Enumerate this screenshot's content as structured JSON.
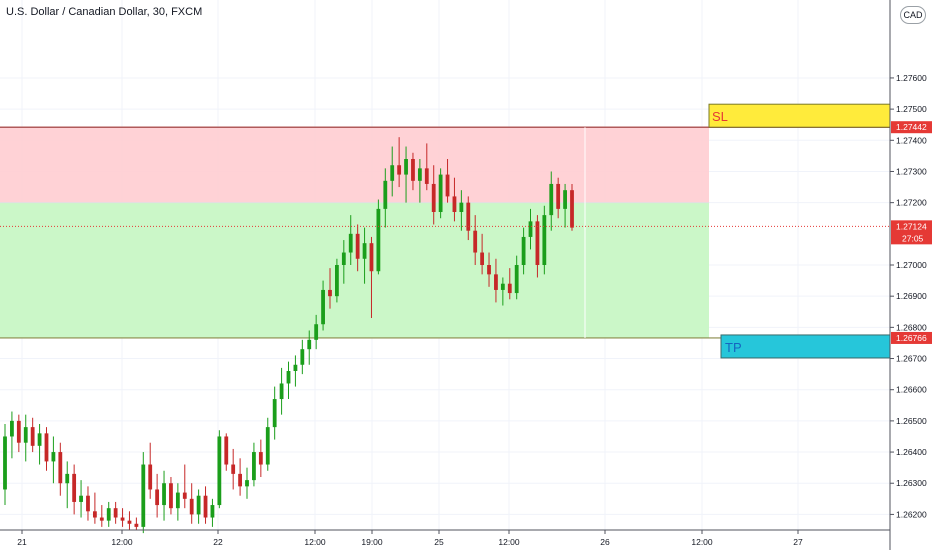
{
  "chart_data": {
    "type": "candlestick",
    "title": "U.S. Dollar / Canadian Dollar, 30, FXCM",
    "currency_badge": "CAD",
    "ylim": [
      1.2615,
      1.2785
    ],
    "y_ticks": [
      "1.27600",
      "1.27500",
      "1.27400",
      "1.27300",
      "1.27200",
      "1.27000",
      "1.26900",
      "1.26800",
      "1.26700",
      "1.26600",
      "1.26500",
      "1.26400",
      "1.26300",
      "1.26200"
    ],
    "x_ticks": [
      "21",
      "12:00",
      "22",
      "12:00",
      "19:00",
      "25",
      "12:00",
      "26",
      "12:00",
      "27"
    ],
    "positions": {
      "stop_loss": {
        "label": "SL",
        "price": 1.27442,
        "price_label": "1.27442"
      },
      "entry": {
        "price": 1.272
      },
      "take_profit": {
        "label": "TP",
        "price": 1.26766,
        "price_label": "1.26766"
      }
    },
    "last_price": {
      "value": 1.27124,
      "label": "1.27124",
      "countdown": "27:05"
    },
    "candles": [
      [
        1.2628,
        1.2649,
        1.2623,
        1.2645
      ],
      [
        1.2645,
        1.2653,
        1.2638,
        1.265
      ],
      [
        1.265,
        1.2652,
        1.264,
        1.2643
      ],
      [
        1.2643,
        1.2652,
        1.2637,
        1.2648
      ],
      [
        1.2648,
        1.2651,
        1.264,
        1.2642
      ],
      [
        1.2642,
        1.2649,
        1.2636,
        1.2646
      ],
      [
        1.2646,
        1.2648,
        1.2634,
        1.2637
      ],
      [
        1.2637,
        1.2645,
        1.263,
        1.264
      ],
      [
        1.264,
        1.2643,
        1.2626,
        1.263
      ],
      [
        1.263,
        1.2637,
        1.2622,
        1.2633
      ],
      [
        1.2633,
        1.2636,
        1.262,
        1.2624
      ],
      [
        1.2624,
        1.2631,
        1.2619,
        1.2626
      ],
      [
        1.2626,
        1.2629,
        1.2618,
        1.2621
      ],
      [
        1.2621,
        1.2627,
        1.2617,
        1.2619
      ],
      [
        1.2619,
        1.2623,
        1.2616,
        1.2618
      ],
      [
        1.2618,
        1.2624,
        1.2616,
        1.2622
      ],
      [
        1.2622,
        1.2624,
        1.2617,
        1.2619
      ],
      [
        1.2619,
        1.2622,
        1.2616,
        1.2618
      ],
      [
        1.2618,
        1.2621,
        1.2615,
        1.2617
      ],
      [
        1.2617,
        1.2619,
        1.2615,
        1.2616
      ],
      [
        1.2616,
        1.264,
        1.2614,
        1.2636
      ],
      [
        1.2636,
        1.2643,
        1.2625,
        1.2628
      ],
      [
        1.2628,
        1.2633,
        1.2619,
        1.2623
      ],
      [
        1.2623,
        1.2634,
        1.2618,
        1.263
      ],
      [
        1.263,
        1.2632,
        1.262,
        1.2622
      ],
      [
        1.2622,
        1.263,
        1.2618,
        1.2627
      ],
      [
        1.2627,
        1.2636,
        1.2622,
        1.2625
      ],
      [
        1.2625,
        1.263,
        1.2617,
        1.262
      ],
      [
        1.262,
        1.2628,
        1.2617,
        1.2626
      ],
      [
        1.2626,
        1.2629,
        1.2617,
        1.2619
      ],
      [
        1.2619,
        1.2625,
        1.2616,
        1.2623
      ],
      [
        1.2623,
        1.2647,
        1.2622,
        1.2645
      ],
      [
        1.2645,
        1.2646,
        1.2634,
        1.2636
      ],
      [
        1.2636,
        1.2641,
        1.2628,
        1.2633
      ],
      [
        1.2633,
        1.2638,
        1.2626,
        1.2629
      ],
      [
        1.2629,
        1.2635,
        1.2625,
        1.2631
      ],
      [
        1.2631,
        1.2643,
        1.2629,
        1.264
      ],
      [
        1.264,
        1.2644,
        1.2632,
        1.2636
      ],
      [
        1.2636,
        1.2651,
        1.2634,
        1.2648
      ],
      [
        1.2648,
        1.2661,
        1.2644,
        1.2657
      ],
      [
        1.2657,
        1.2667,
        1.2652,
        1.2662
      ],
      [
        1.2662,
        1.2669,
        1.2657,
        1.2666
      ],
      [
        1.2666,
        1.2671,
        1.2661,
        1.2668
      ],
      [
        1.2668,
        1.2676,
        1.2665,
        1.2673
      ],
      [
        1.2673,
        1.2679,
        1.2668,
        1.2676
      ],
      [
        1.2676,
        1.2684,
        1.2673,
        1.2681
      ],
      [
        1.2681,
        1.2695,
        1.2679,
        1.2692
      ],
      [
        1.2692,
        1.2699,
        1.2686,
        1.269
      ],
      [
        1.269,
        1.2702,
        1.2688,
        1.27
      ],
      [
        1.27,
        1.2708,
        1.2694,
        1.2704
      ],
      [
        1.2704,
        1.2716,
        1.27,
        1.271
      ],
      [
        1.271,
        1.2713,
        1.2698,
        1.2702
      ],
      [
        1.2702,
        1.2712,
        1.2694,
        1.2707
      ],
      [
        1.2707,
        1.2709,
        1.2683,
        1.2698
      ],
      [
        1.2698,
        1.2721,
        1.2697,
        1.2718
      ],
      [
        1.2718,
        1.2731,
        1.2712,
        1.2727
      ],
      [
        1.2727,
        1.2738,
        1.2722,
        1.2732
      ],
      [
        1.2732,
        1.2741,
        1.2725,
        1.2729
      ],
      [
        1.2729,
        1.2738,
        1.272,
        1.2734
      ],
      [
        1.2734,
        1.2736,
        1.2724,
        1.2727
      ],
      [
        1.2727,
        1.2734,
        1.272,
        1.2731
      ],
      [
        1.2731,
        1.2739,
        1.2724,
        1.2726
      ],
      [
        1.2726,
        1.2732,
        1.2713,
        1.2717
      ],
      [
        1.2717,
        1.2731,
        1.2715,
        1.2729
      ],
      [
        1.2729,
        1.2734,
        1.272,
        1.2722
      ],
      [
        1.2722,
        1.2728,
        1.2714,
        1.2717
      ],
      [
        1.2717,
        1.2724,
        1.2711,
        1.272
      ],
      [
        1.272,
        1.2722,
        1.2708,
        1.2711
      ],
      [
        1.2711,
        1.2716,
        1.27,
        1.2704
      ],
      [
        1.2704,
        1.271,
        1.2697,
        1.27
      ],
      [
        1.27,
        1.2704,
        1.2693,
        1.2697
      ],
      [
        1.2697,
        1.2702,
        1.2688,
        1.2692
      ],
      [
        1.2692,
        1.2696,
        1.2687,
        1.2694
      ],
      [
        1.2694,
        1.2699,
        1.2689,
        1.2691
      ],
      [
        1.2691,
        1.2703,
        1.2689,
        1.27
      ],
      [
        1.27,
        1.2712,
        1.2697,
        1.2709
      ],
      [
        1.2709,
        1.2718,
        1.2705,
        1.2714
      ],
      [
        1.2714,
        1.2716,
        1.2696,
        1.27
      ],
      [
        1.27,
        1.2719,
        1.2697,
        1.2716
      ],
      [
        1.2716,
        1.273,
        1.2711,
        1.2726
      ],
      [
        1.2726,
        1.2728,
        1.2715,
        1.2718
      ],
      [
        1.2718,
        1.2726,
        1.2712,
        1.2724
      ],
      [
        1.2724,
        1.2726,
        1.2711,
        1.2712
      ]
    ]
  }
}
